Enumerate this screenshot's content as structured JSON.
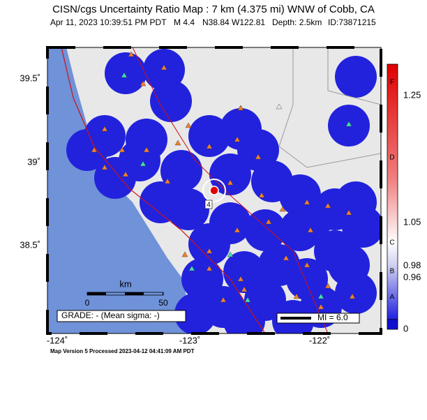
{
  "header": {
    "title": "CISN/cgs Uncertainty Ratio Map : 7 km (4.375 mi) WNW of Cobb, CA",
    "date": "Apr 11, 2023 10:39:51 PM PDT",
    "magnitude": "M 4.4",
    "location": "N38.84 W122.81",
    "depth": "Depth: 2.5km",
    "id": "ID:73871215"
  },
  "map": {
    "lat_labels": [
      "39.5˚",
      "39˚",
      "38.5˚"
    ],
    "lon_labels": [
      "-124˚",
      "-123˚",
      "-122˚"
    ],
    "scale_title": "km",
    "scale_labels": [
      "0",
      "50"
    ],
    "grade": "GRADE: - (Mean sigma: -)",
    "mmi": "MI = 6.0",
    "station_label": "4"
  },
  "colorbar": {
    "ticks": [
      "1.25",
      "1.05",
      "0.98",
      "0.96",
      "0"
    ],
    "grades": [
      "F",
      "D",
      "C",
      "B",
      "A"
    ]
  },
  "footer": "Map Version 5 Processed 2023-04-12 04:41:09 AM PDT"
}
